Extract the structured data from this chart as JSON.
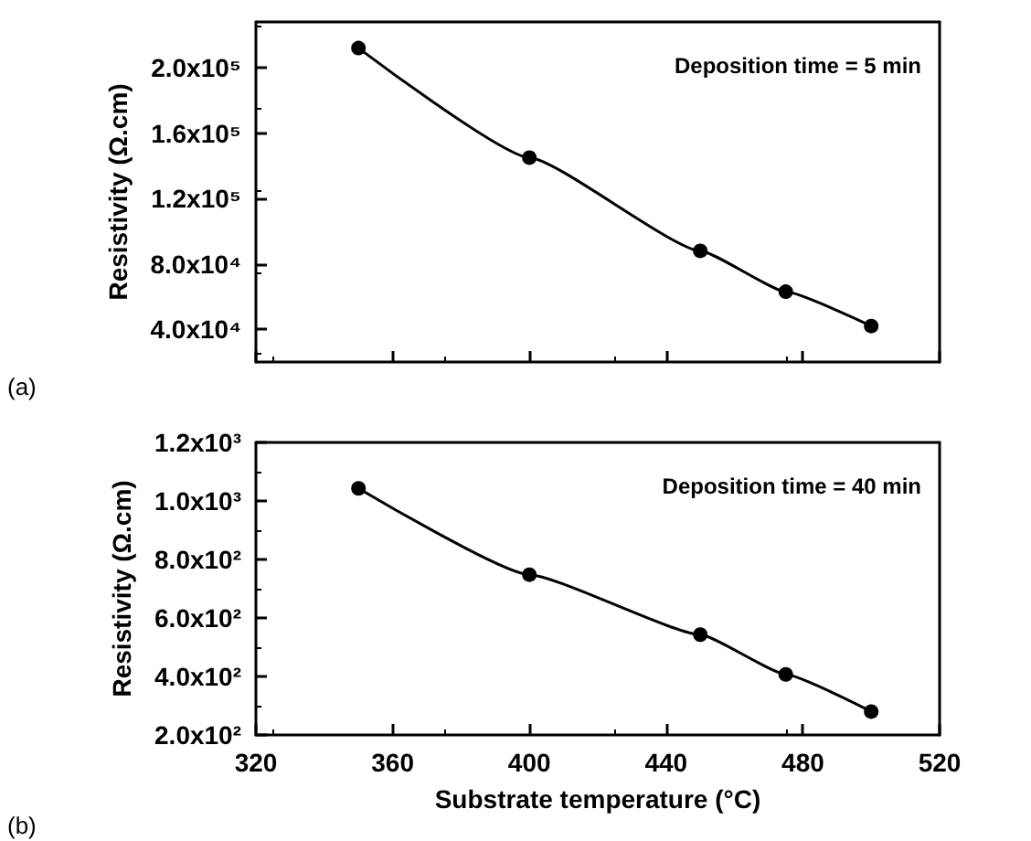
{
  "chart_data": [
    {
      "type": "line",
      "ylabel": "Resistivity (Ω.cm)",
      "annotations": [
        "Deposition time = 5 min",
        "(a)"
      ],
      "x": [
        350,
        400,
        450,
        475,
        500
      ],
      "series": [
        {
          "color": "#000000",
          "values": [
            212000,
            145000,
            88000,
            63000,
            42000
          ]
        }
      ],
      "xlim": [
        320,
        520
      ],
      "xticks": [
        {
          "value": 320,
          "label": null
        },
        {
          "value": 360,
          "label": null
        },
        {
          "value": 400,
          "label": null
        },
        {
          "value": 440,
          "label": null
        },
        {
          "value": 480,
          "label": null
        },
        {
          "value": 520,
          "label": null
        }
      ],
      "ylim": [
        20000,
        228000
      ],
      "yticks": [
        {
          "value": 40000,
          "label": "4.0x10⁴"
        },
        {
          "value": 80000,
          "label": "8.0x10⁴"
        },
        {
          "value": 120000,
          "label": "1.2x10⁵"
        },
        {
          "value": 160000,
          "label": "1.6x10⁵"
        },
        {
          "value": 200000,
          "label": "2.0x10⁵"
        }
      ],
      "tick_labels": "y",
      "marker": "circle",
      "line_style": "solid"
    },
    {
      "type": "line",
      "xlabel": "Substrate temperature (°C)",
      "ylabel": "Resistivity (Ω.cm)",
      "annotations": [
        "Deposition time = 40 min",
        "(b)"
      ],
      "x": [
        350,
        400,
        450,
        475,
        500
      ],
      "series": [
        {
          "color": "#000000",
          "values": [
            1043,
            748,
            543,
            407,
            280
          ]
        }
      ],
      "xlim": [
        320,
        520
      ],
      "xticks": [
        320,
        360,
        400,
        440,
        480,
        520
      ],
      "ylim": [
        200,
        1200
      ],
      "yticks": [
        {
          "value": 200,
          "label": "2.0x10²"
        },
        {
          "value": 400,
          "label": "4.0x10²"
        },
        {
          "value": 600,
          "label": "6.0x10²"
        },
        {
          "value": 800,
          "label": "8.0x10²"
        },
        {
          "value": 1000,
          "label": "1.0x10³"
        },
        {
          "value": 1200,
          "label": "1.2x10³"
        }
      ],
      "marker": "circle",
      "line_style": "solid"
    }
  ]
}
